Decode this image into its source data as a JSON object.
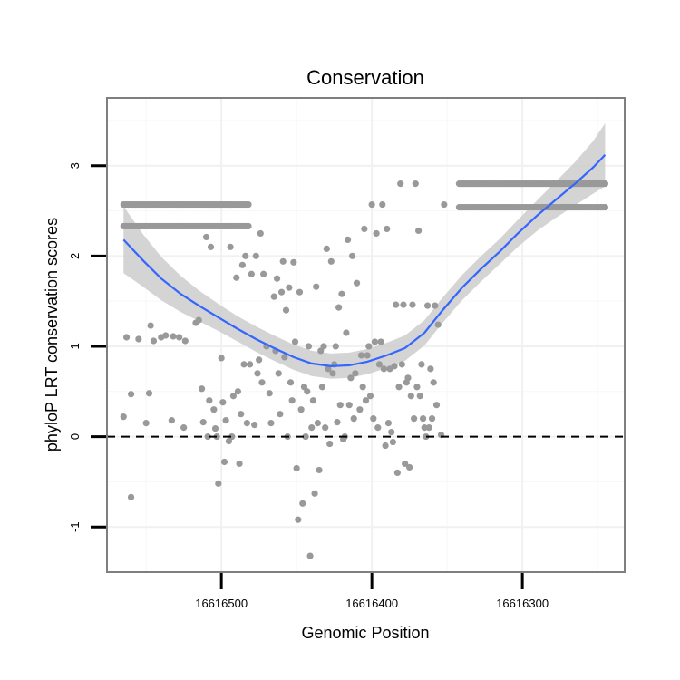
{
  "chart_data": {
    "type": "scatter",
    "title": "Conservation",
    "xlabel": "Genomic Position",
    "ylabel": "phyloP LRT conservation scores",
    "x_reversed": true,
    "xlim": [
      16616576,
      16616232
    ],
    "ylim": [
      -1.5,
      3.75
    ],
    "x_ticks": [
      16616500,
      16616400,
      16616300
    ],
    "x_tick_labels": [
      "16616500",
      "16616400",
      "16616300"
    ],
    "y_ticks": [
      -1,
      0,
      1,
      2,
      3
    ],
    "y_tick_labels": [
      "-1",
      "0",
      "1",
      "2",
      "3"
    ],
    "grid": true,
    "reference_line": {
      "y": 0,
      "style": "dashed"
    },
    "colors": {
      "points": "#999999",
      "smooth_line": "#3366ff",
      "ribbon": "#cccccc",
      "frame": "#7f7f7f"
    },
    "series": [
      {
        "kind": "points",
        "x_range": [
          16616565,
          16616482
        ],
        "y_values": [
          2.57,
          2.33
        ]
      },
      {
        "kind": "points",
        "x_range": [
          16616342,
          16616245
        ],
        "y_values": [
          2.8,
          2.54
        ]
      },
      {
        "kind": "points",
        "points": [
          [
            16616565,
            0.22
          ],
          [
            16616563,
            1.1
          ],
          [
            16616560,
            -0.67
          ],
          [
            16616560,
            0.47
          ],
          [
            16616555,
            1.08
          ],
          [
            16616550,
            0.15
          ],
          [
            16616548,
            0.48
          ],
          [
            16616547,
            1.23
          ],
          [
            16616545,
            1.06
          ],
          [
            16616540,
            1.1
          ],
          [
            16616537,
            1.12
          ],
          [
            16616533,
            0.18
          ],
          [
            16616532,
            1.11
          ],
          [
            16616528,
            1.1
          ],
          [
            16616525,
            0.1
          ],
          [
            16616524,
            1.06
          ],
          [
            16616517,
            1.26
          ],
          [
            16616515,
            1.29
          ],
          [
            16616513,
            0.53
          ],
          [
            16616512,
            0.16
          ],
          [
            16616510,
            2.21
          ],
          [
            16616509,
            0.0
          ],
          [
            16616508,
            0.4
          ],
          [
            16616507,
            2.1
          ],
          [
            16616505,
            0.3
          ],
          [
            16616504,
            0.09
          ],
          [
            16616503,
            0.0
          ],
          [
            16616502,
            -0.52
          ],
          [
            16616500,
            0.87
          ],
          [
            16616499,
            0.38
          ],
          [
            16616498,
            -0.28
          ],
          [
            16616497,
            0.18
          ],
          [
            16616495,
            -0.05
          ],
          [
            16616494,
            2.1
          ],
          [
            16616493,
            0.0
          ],
          [
            16616492,
            0.45
          ],
          [
            16616490,
            1.76
          ],
          [
            16616489,
            0.5
          ],
          [
            16616488,
            -0.3
          ],
          [
            16616487,
            0.25
          ],
          [
            16616486,
            1.9
          ],
          [
            16616485,
            0.8
          ],
          [
            16616484,
            2.0
          ],
          [
            16616483,
            0.15
          ],
          [
            16616481,
            0.8
          ],
          [
            16616480,
            1.8
          ],
          [
            16616478,
            0.13
          ],
          [
            16616477,
            2.0
          ],
          [
            16616476,
            0.7
          ],
          [
            16616475,
            0.85
          ],
          [
            16616474,
            2.25
          ],
          [
            16616473,
            0.6
          ],
          [
            16616472,
            1.8
          ],
          [
            16616470,
            1.0
          ],
          [
            16616468,
            0.48
          ],
          [
            16616467,
            0.15
          ],
          [
            16616465,
            1.55
          ],
          [
            16616464,
            0.95
          ],
          [
            16616463,
            1.75
          ],
          [
            16616462,
            0.7
          ],
          [
            16616461,
            0.25
          ],
          [
            16616460,
            1.6
          ],
          [
            16616459,
            1.94
          ],
          [
            16616458,
            0.88
          ],
          [
            16616457,
            1.4
          ],
          [
            16616456,
            0.0
          ],
          [
            16616455,
            1.65
          ],
          [
            16616454,
            0.6
          ],
          [
            16616453,
            0.4
          ],
          [
            16616452,
            1.93
          ],
          [
            16616451,
            1.05
          ],
          [
            16616450,
            -0.35
          ],
          [
            16616449,
            -0.92
          ],
          [
            16616448,
            1.6
          ],
          [
            16616447,
            0.3
          ],
          [
            16616446,
            -0.74
          ],
          [
            16616445,
            0.55
          ],
          [
            16616444,
            0.0
          ],
          [
            16616443,
            0.5
          ],
          [
            16616442,
            1.0
          ],
          [
            16616441,
            -1.32
          ],
          [
            16616440,
            0.1
          ],
          [
            16616439,
            0.4
          ],
          [
            16616438,
            -0.63
          ],
          [
            16616437,
            1.66
          ],
          [
            16616436,
            0.15
          ],
          [
            16616435,
            -0.37
          ],
          [
            16616434,
            0.95
          ],
          [
            16616433,
            0.55
          ],
          [
            16616432,
            1.0
          ],
          [
            16616431,
            0.1
          ],
          [
            16616430,
            2.08
          ],
          [
            16616429,
            0.75
          ],
          [
            16616428,
            -0.08
          ],
          [
            16616427,
            1.94
          ],
          [
            16616426,
            0.7
          ],
          [
            16616425,
            0.8
          ],
          [
            16616424,
            1.0
          ],
          [
            16616423,
            0.16
          ],
          [
            16616422,
            1.43
          ],
          [
            16616421,
            0.35
          ],
          [
            16616420,
            1.58
          ],
          [
            16616419,
            -0.03
          ],
          [
            16616418,
            0.0
          ],
          [
            16616417,
            1.15
          ],
          [
            16616416,
            2.18
          ],
          [
            16616415,
            0.35
          ],
          [
            16616414,
            0.65
          ],
          [
            16616413,
            2.0
          ],
          [
            16616412,
            0.2
          ],
          [
            16616411,
            0.7
          ],
          [
            16616410,
            1.7
          ],
          [
            16616408,
            0.3
          ],
          [
            16616407,
            0.9
          ],
          [
            16616406,
            0.55
          ],
          [
            16616405,
            2.3
          ],
          [
            16616404,
            0.4
          ],
          [
            16616403,
            0.9
          ],
          [
            16616402,
            1.0
          ],
          [
            16616401,
            0.45
          ],
          [
            16616400,
            2.57
          ],
          [
            16616399,
            0.2
          ],
          [
            16616398,
            1.05
          ],
          [
            16616397,
            2.25
          ],
          [
            16616396,
            0.1
          ],
          [
            16616395,
            0.8
          ],
          [
            16616394,
            1.05
          ],
          [
            16616393,
            2.57
          ],
          [
            16616392,
            0.75
          ],
          [
            16616391,
            -0.1
          ],
          [
            16616390,
            2.3
          ],
          [
            16616389,
            0.15
          ],
          [
            16616388,
            0.75
          ],
          [
            16616387,
            0.05
          ],
          [
            16616386,
            -0.06
          ],
          [
            16616385,
            0.78
          ],
          [
            16616384,
            1.46
          ],
          [
            16616383,
            -0.4
          ],
          [
            16616382,
            0.55
          ],
          [
            16616381,
            2.8
          ],
          [
            16616380,
            0.8
          ],
          [
            16616379,
            1.46
          ],
          [
            16616378,
            -0.3
          ],
          [
            16616377,
            0.6
          ],
          [
            16616376,
            0.65
          ],
          [
            16616375,
            -0.34
          ],
          [
            16616374,
            0.45
          ],
          [
            16616373,
            1.46
          ],
          [
            16616372,
            0.2
          ],
          [
            16616371,
            2.8
          ],
          [
            16616370,
            0.55
          ],
          [
            16616369,
            2.28
          ],
          [
            16616368,
            0.45
          ],
          [
            16616367,
            0.8
          ],
          [
            16616366,
            0.2
          ],
          [
            16616365,
            0.1
          ],
          [
            16616364,
            0.0
          ],
          [
            16616363,
            1.45
          ],
          [
            16616362,
            0.1
          ],
          [
            16616361,
            0.75
          ],
          [
            16616360,
            0.2
          ],
          [
            16616359,
            0.6
          ],
          [
            16616358,
            1.45
          ],
          [
            16616357,
            0.35
          ],
          [
            16616356,
            1.24
          ],
          [
            16616354,
            0.02
          ],
          [
            16616352,
            2.57
          ]
        ]
      },
      {
        "kind": "smooth",
        "name": "",
        "points": [
          [
            16616565,
            2.18
          ],
          [
            16616552,
            1.95
          ],
          [
            16616540,
            1.75
          ],
          [
            16616527,
            1.58
          ],
          [
            16616515,
            1.45
          ],
          [
            16616502,
            1.32
          ],
          [
            16616490,
            1.2
          ],
          [
            16616477,
            1.08
          ],
          [
            16616465,
            0.98
          ],
          [
            16616452,
            0.88
          ],
          [
            16616440,
            0.81
          ],
          [
            16616427,
            0.78
          ],
          [
            16616415,
            0.79
          ],
          [
            16616403,
            0.83
          ],
          [
            16616390,
            0.9
          ],
          [
            16616378,
            0.98
          ],
          [
            16616365,
            1.15
          ],
          [
            16616353,
            1.4
          ],
          [
            16616340,
            1.65
          ],
          [
            16616328,
            1.85
          ],
          [
            16616315,
            2.05
          ],
          [
            16616303,
            2.25
          ],
          [
            16616290,
            2.45
          ],
          [
            16616278,
            2.62
          ],
          [
            16616265,
            2.8
          ],
          [
            16616253,
            2.98
          ],
          [
            16616245,
            3.12
          ]
        ],
        "ribbon_halfwidth": [
          0.37,
          0.29,
          0.24,
          0.2,
          0.17,
          0.15,
          0.14,
          0.14,
          0.14,
          0.14,
          0.14,
          0.14,
          0.14,
          0.14,
          0.14,
          0.14,
          0.14,
          0.14,
          0.14,
          0.14,
          0.14,
          0.15,
          0.17,
          0.2,
          0.24,
          0.29,
          0.35
        ]
      }
    ]
  }
}
